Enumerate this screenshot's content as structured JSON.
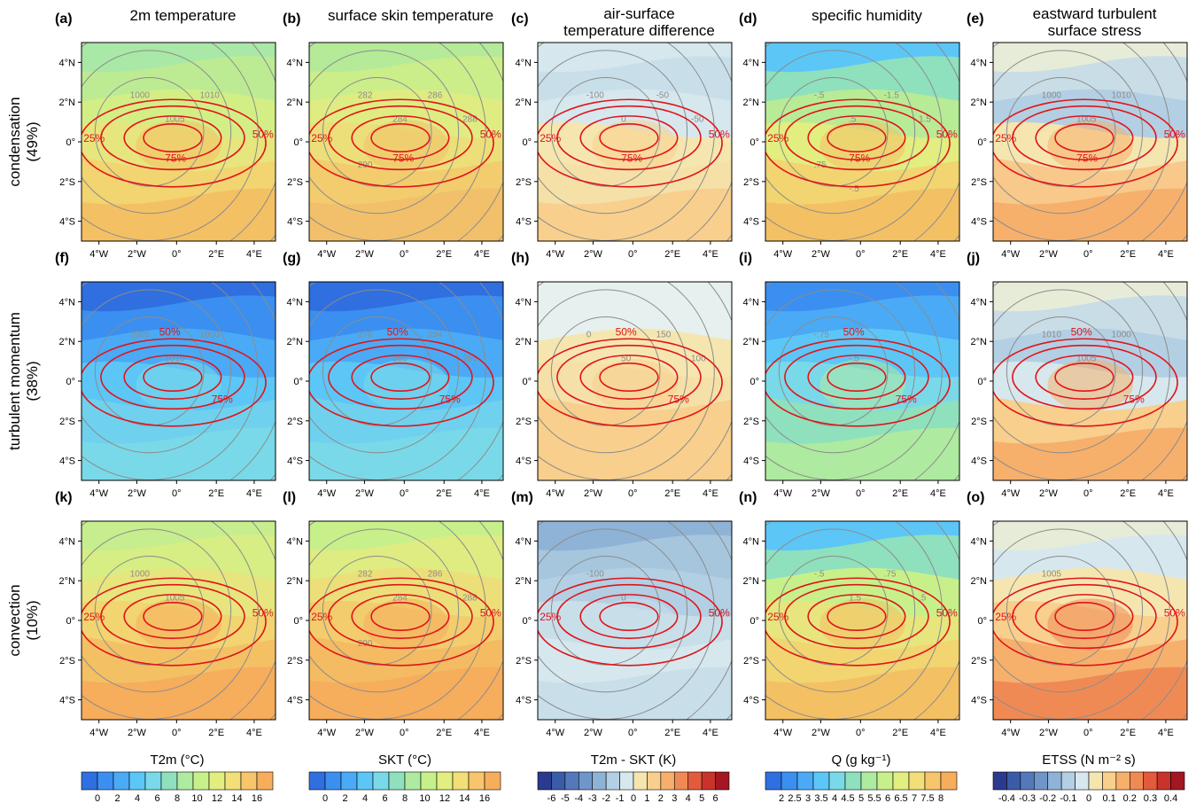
{
  "figure": {
    "column_titles": [
      [
        "2m temperature"
      ],
      [
        "surface skin temperature"
      ],
      [
        "air-surface",
        "temperature difference"
      ],
      [
        "specific humidity"
      ],
      [
        "eastward turbulent",
        "surface stress"
      ]
    ],
    "row_labels": [
      [
        "condensation",
        "(49%)"
      ],
      [
        "turbulent momentum",
        "(38%)"
      ],
      [
        "convection",
        "(10%)"
      ]
    ],
    "panel_labels": [
      "(a)",
      "(b)",
      "(c)",
      "(d)",
      "(e)",
      "(f)",
      "(g)",
      "(h)",
      "(i)",
      "(j)",
      "(k)",
      "(l)",
      "(m)",
      "(n)",
      "(o)"
    ],
    "lat_ticks": [
      "4°N",
      "2°N",
      "0°",
      "2°S",
      "4°S"
    ],
    "lon_ticks": [
      "4°W",
      "2°W",
      "0°",
      "2°E",
      "4°E"
    ],
    "colorbars": [
      {
        "title": "T2m (°C)",
        "ticks": [
          "0",
          "2",
          "4",
          "6",
          "8",
          "10",
          "12",
          "14",
          "16"
        ]
      },
      {
        "title": "SKT (°C)",
        "ticks": [
          "0",
          "2",
          "4",
          "6",
          "8",
          "10",
          "12",
          "14",
          "16"
        ]
      },
      {
        "title": "T2m - SKT (K)",
        "ticks": [
          "-6",
          "-5",
          "-4",
          "-3",
          "-2",
          "-1",
          "0",
          "1",
          "2",
          "3",
          "4",
          "5",
          "6"
        ]
      },
      {
        "title": "Q (g kg⁻¹)",
        "ticks": [
          "2",
          "2.5",
          "3",
          "3.5",
          "4",
          "4.5",
          "5",
          "5.5",
          "6",
          "6.5",
          "7",
          "7.5",
          "8"
        ]
      },
      {
        "title": "ETSS (N m⁻² s)",
        "ticks": [
          "-0.4",
          "-0.3",
          "-0.2",
          "-0.1",
          "0",
          "0.1",
          "0.2",
          "0.3",
          "0.4"
        ]
      }
    ],
    "colors": {
      "temperature_scale": [
        "#2f6fe0",
        "#3b8ff0",
        "#4aaaf5",
        "#5cc6f7",
        "#7ad9e8",
        "#8fe0bd",
        "#aeeaa0",
        "#c8f08a",
        "#e2ee80",
        "#f2df78",
        "#f7c56c",
        "#f6ad5c"
      ],
      "difference_scale": [
        "#2b3a8f",
        "#3a5ca8",
        "#5479bb",
        "#6f96c8",
        "#8fb3d6",
        "#b3cfe3",
        "#d6e8ee",
        "#f5e6b0",
        "#f8cf8c",
        "#f6b06c",
        "#f08a55",
        "#e35b3c",
        "#c9332c",
        "#a31622"
      ],
      "humidity_scale": [
        "#2f6fe0",
        "#3b8ff0",
        "#4aaaf5",
        "#5cc6f7",
        "#7ad9e8",
        "#8fe0bd",
        "#aeeaa0",
        "#c8f08a",
        "#e2ee80",
        "#f2df78",
        "#f7c56c",
        "#f6ad5c"
      ],
      "stress_scale": [
        "#2b3a8f",
        "#3a5ca8",
        "#5479bb",
        "#6f96c8",
        "#8fb3d6",
        "#b3cfe3",
        "#d6e8ee",
        "#f5e6b0",
        "#f8cf8c",
        "#f6b06c",
        "#f08a55",
        "#e35b3c",
        "#c9332c",
        "#a31622"
      ],
      "probability_contour": "#e0141a",
      "field_contour": "#8c8c8c"
    },
    "panels": [
      {
        "id": "a",
        "fill": [
          "#a9e8a6",
          "#bdeb94",
          "#d4ee86",
          "#e7e57d",
          "#f2d470",
          "#f4c064"
        ],
        "gray": [
          "1000",
          "1005",
          "1010"
        ],
        "red": [
          "25%",
          "50%",
          "75%"
        ]
      },
      {
        "id": "b",
        "fill": [
          "#b5ea98",
          "#cbee8a",
          "#dfec82",
          "#ecdf79",
          "#f2cc6d",
          "#f2c06a"
        ],
        "gray": [
          "282",
          "284",
          "286",
          "288",
          "290"
        ],
        "red": [
          "25%",
          "50%",
          "75%"
        ]
      },
      {
        "id": "c",
        "fill": [
          "#d6e8ee",
          "#c8dfea",
          "#d6e8ee",
          "#f5e6b0",
          "#f5e0a8",
          "#f8cf8c"
        ],
        "gray": [
          "-100",
          "0",
          "-50",
          "-50"
        ],
        "red": [
          "25%",
          "50%",
          "75%"
        ]
      },
      {
        "id": "d",
        "fill": [
          "#5cc6f7",
          "#8fe0bd",
          "#b8eb96",
          "#e2ee80",
          "#f2d470",
          "#f4c064"
        ],
        "gray": [
          "-.5",
          ".5",
          "-1.5",
          "1.5",
          ".75",
          "-.5"
        ],
        "red": [
          "25%",
          "50%",
          "75%"
        ]
      },
      {
        "id": "e",
        "fill": [
          "#e7ecd8",
          "#c9dde6",
          "#b3cfe3",
          "#f5e6b0",
          "#f8c98a",
          "#f6b06c"
        ],
        "gray": [
          "1000",
          "1005",
          "1010"
        ],
        "red": [
          "25%",
          "50%",
          "75%"
        ]
      },
      {
        "id": "f",
        "fill": [
          "#2f6fe0",
          "#3b8ff0",
          "#4aaaf5",
          "#5cc6f7",
          "#6fd1ee",
          "#7ad9e8"
        ],
        "gray": [
          "1005",
          "1010",
          "1000"
        ],
        "red": [
          "50%",
          "75%"
        ]
      },
      {
        "id": "g",
        "fill": [
          "#2f6fe0",
          "#3b8ff0",
          "#4aaaf5",
          "#5cc6f7",
          "#6fd1ee",
          "#7ad9e8"
        ],
        "gray": [
          "278",
          "280",
          "284",
          "286"
        ],
        "red": [
          "50%",
          "75%"
        ]
      },
      {
        "id": "h",
        "fill": [
          "#e6f0ee",
          "#e6f0ee",
          "#f5e6b0",
          "#f5e0a8",
          "#f8cf8c",
          "#f8cf8c"
        ],
        "gray": [
          "0",
          "50",
          "150",
          "100"
        ],
        "red": [
          "50%",
          "75%"
        ]
      },
      {
        "id": "i",
        "fill": [
          "#3b8ff0",
          "#4aaaf5",
          "#5cc6f7",
          "#7ad9e8",
          "#8fe0bd",
          "#aeeaa0"
        ],
        "gray": [
          "-.75",
          "-.5"
        ],
        "red": [
          "50%",
          "75%"
        ]
      },
      {
        "id": "j",
        "fill": [
          "#e7ecd8",
          "#c9dde6",
          "#b3cfe3",
          "#d6e8ee",
          "#f8cf8c",
          "#f6b06c"
        ],
        "gray": [
          "1010",
          "1005",
          "1000"
        ],
        "red": [
          "50%",
          "75%"
        ]
      },
      {
        "id": "k",
        "fill": [
          "#c6ee8e",
          "#d6ee84",
          "#e7e57d",
          "#f2d470",
          "#f4c064",
          "#f6ad5c"
        ],
        "gray": [
          "1000",
          "1005"
        ],
        "red": [
          "25%",
          "50%"
        ]
      },
      {
        "id": "l",
        "fill": [
          "#c8f08a",
          "#dfec82",
          "#ecdf79",
          "#f2cc6d",
          "#f4bb62",
          "#f6ad5c"
        ],
        "gray": [
          "282",
          "284",
          "286",
          "288",
          "290"
        ],
        "red": [
          "25%",
          "50%"
        ]
      },
      {
        "id": "m",
        "fill": [
          "#8fb3d6",
          "#a6c6de",
          "#b3cfe3",
          "#c8dfea",
          "#d6e8ee",
          "#c8dfea"
        ],
        "gray": [
          "-100",
          "0"
        ],
        "red": [
          "25%",
          "50%"
        ]
      },
      {
        "id": "n",
        "fill": [
          "#5cc6f7",
          "#8fe0bd",
          "#c8f08a",
          "#e7e57d",
          "#f2d470",
          "#f4c064"
        ],
        "gray": [
          "-.5",
          "1.5",
          ".75",
          ".5"
        ],
        "red": [
          "25%",
          "50%"
        ]
      },
      {
        "id": "o",
        "fill": [
          "#e7ecd8",
          "#d6e8ee",
          "#f5e6b0",
          "#f8cf8c",
          "#f6b06c",
          "#f08a55"
        ],
        "gray": [
          "1005"
        ],
        "red": [
          "25%",
          "50%"
        ]
      }
    ]
  },
  "chart_data": {
    "type": "heatmap",
    "title": "",
    "layout": "3 rows x 5 columns of composite map panels",
    "x_axis": {
      "ticks": [
        "4°W",
        "2°W",
        "0°",
        "2°E",
        "4°E"
      ],
      "range_deg": [
        -4.8,
        4.8
      ]
    },
    "y_axis": {
      "ticks": [
        "4°N",
        "2°N",
        "0°",
        "2°S",
        "4°S"
      ],
      "range_deg": [
        -4.8,
        4.8
      ]
    },
    "rows": [
      "condensation (49%)",
      "turbulent momentum (38%)",
      "convection (10%)"
    ],
    "columns": [
      "2m temperature",
      "surface skin temperature",
      "air-surface temperature difference",
      "specific humidity",
      "eastward turbulent surface stress"
    ],
    "probability_contours_percent": [
      25,
      50,
      75
    ],
    "colorbar_ranges": {
      "T2m (°C)": [
        0,
        16
      ],
      "SKT (°C)": [
        0,
        16
      ],
      "T2m - SKT (K)": [
        -6,
        6
      ],
      "Q (g kg⁻¹)": [
        2,
        8
      ],
      "ETSS (N m⁻² s)": [
        -0.4,
        0.4
      ]
    },
    "grid": false
  }
}
